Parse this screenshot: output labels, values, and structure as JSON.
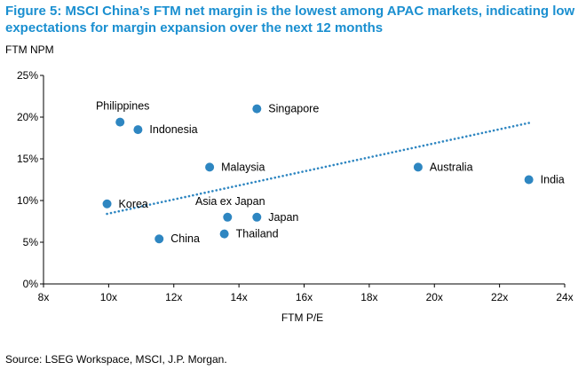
{
  "title": "Figure 5: MSCI China’s FTM net margin is the lowest among APAC markets, indicating low expectations for margin expansion over the next 12 months",
  "source": "Source: LSEG Workspace, MSCI, J.P. Morgan.",
  "colors": {
    "title": "#1a8fd0",
    "points": "#2e86c1",
    "trendline": "#2e86c1",
    "axis": "#000000"
  },
  "chart_data": {
    "type": "scatter",
    "title": "",
    "xlabel": "FTM P/E",
    "ylabel": "FTM NPM",
    "xlim": [
      8,
      24
    ],
    "ylim": [
      0,
      25
    ],
    "xticks": [
      {
        "value": 8,
        "label": "8x"
      },
      {
        "value": 10,
        "label": "10x"
      },
      {
        "value": 12,
        "label": "12x"
      },
      {
        "value": 14,
        "label": "14x"
      },
      {
        "value": 16,
        "label": "16x"
      },
      {
        "value": 18,
        "label": "18x"
      },
      {
        "value": 20,
        "label": "20x"
      },
      {
        "value": 22,
        "label": "22x"
      },
      {
        "value": 24,
        "label": "24x"
      }
    ],
    "yticks": [
      {
        "value": 0,
        "label": "0%"
      },
      {
        "value": 5,
        "label": "5%"
      },
      {
        "value": 10,
        "label": "10%"
      },
      {
        "value": 15,
        "label": "15%"
      },
      {
        "value": 20,
        "label": "20%"
      },
      {
        "value": 25,
        "label": "25%"
      }
    ],
    "grid": false,
    "points": [
      {
        "name": "Philippines",
        "x": 10.35,
        "y": 19.4,
        "label_pos": "above"
      },
      {
        "name": "Indonesia",
        "x": 10.9,
        "y": 18.5,
        "label_pos": "right"
      },
      {
        "name": "Singapore",
        "x": 14.55,
        "y": 21.0,
        "label_pos": "right"
      },
      {
        "name": "Malaysia",
        "x": 13.1,
        "y": 14.0,
        "label_pos": "right"
      },
      {
        "name": "Australia",
        "x": 19.5,
        "y": 14.0,
        "label_pos": "right"
      },
      {
        "name": "India",
        "x": 22.9,
        "y": 12.5,
        "label_pos": "right"
      },
      {
        "name": "Korea",
        "x": 9.95,
        "y": 9.6,
        "label_pos": "right"
      },
      {
        "name": "Asia ex Japan",
        "x": 13.65,
        "y": 8.0,
        "label_pos": "above"
      },
      {
        "name": "Japan",
        "x": 14.55,
        "y": 8.0,
        "label_pos": "right"
      },
      {
        "name": "Thailand",
        "x": 13.55,
        "y": 6.0,
        "label_pos": "right"
      },
      {
        "name": "China",
        "x": 11.55,
        "y": 5.4,
        "label_pos": "right"
      }
    ],
    "trendline": {
      "x": [
        9.95,
        22.9
      ],
      "y": [
        8.4,
        19.3
      ],
      "style": "dotted"
    }
  }
}
